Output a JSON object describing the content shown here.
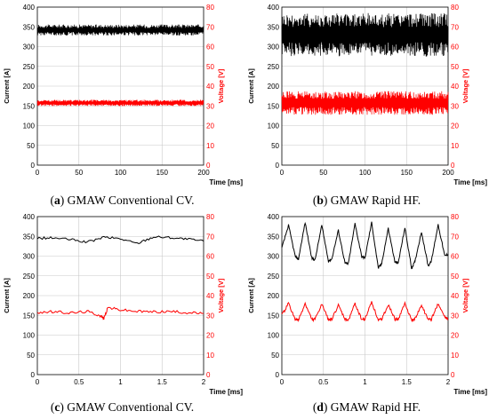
{
  "colors": {
    "current": "#000000",
    "voltage": "#ff0000",
    "grid": "#c8c8c8"
  },
  "chart_data": [
    {
      "type": "line",
      "caption_letter": "a",
      "caption_text": "GMAW Conventional CV.",
      "xlabel": "Time [ms]",
      "ylabel": "Current [A]",
      "y2label": "Voltage [V]",
      "xlim": [
        0,
        200
      ],
      "xticks": [
        "0",
        "50",
        "100",
        "150",
        "200"
      ],
      "ylim": [
        0,
        400
      ],
      "yticks": [
        "0",
        "50",
        "100",
        "150",
        "200",
        "250",
        "300",
        "350",
        "400"
      ],
      "y2lim": [
        0,
        80
      ],
      "y2ticks": [
        "0",
        "10",
        "20",
        "30",
        "40",
        "50",
        "60",
        "70",
        "80"
      ],
      "series": [
        {
          "axis": "left",
          "kind": "band",
          "center": 342,
          "amp": 14
        },
        {
          "axis": "right",
          "kind": "band",
          "center": 31.5,
          "amp": 1.6
        }
      ]
    },
    {
      "type": "line",
      "caption_letter": "b",
      "caption_text": "GMAW Rapid HF.",
      "xlabel": "Time [ms]",
      "ylabel": "Current [A]",
      "y2label": "Voltage [V]",
      "xlim": [
        0,
        200
      ],
      "xticks": [
        "0",
        "50",
        "100",
        "150",
        "200"
      ],
      "ylim": [
        0,
        400
      ],
      "yticks": [
        "0",
        "50",
        "100",
        "150",
        "200",
        "250",
        "300",
        "350",
        "400"
      ],
      "y2lim": [
        0,
        80
      ],
      "y2ticks": [
        "0",
        "10",
        "20",
        "30",
        "40",
        "50",
        "60",
        "70",
        "80"
      ],
      "series": [
        {
          "axis": "left",
          "kind": "band",
          "center": 330,
          "amp": 55
        },
        {
          "axis": "right",
          "kind": "band",
          "center": 31.5,
          "amp": 6
        }
      ]
    },
    {
      "type": "line",
      "caption_letter": "c",
      "caption_text": "GMAW Conventional CV.",
      "xlabel": "Time [ms]",
      "ylabel": "Current [A]",
      "y2label": "Voltage [V]",
      "xlim": [
        0,
        2
      ],
      "xticks": [
        "0",
        "0.5",
        "1",
        "1.5",
        "2"
      ],
      "ylim": [
        0,
        400
      ],
      "yticks": [
        "0",
        "50",
        "100",
        "150",
        "200",
        "250",
        "300",
        "350",
        "400"
      ],
      "y2lim": [
        0,
        80
      ],
      "y2ticks": [
        "0",
        "10",
        "20",
        "30",
        "40",
        "50",
        "60",
        "70",
        "80"
      ],
      "series": [
        {
          "axis": "left",
          "kind": "points",
          "x": [
            0,
            0.2,
            0.4,
            0.6,
            0.8,
            1.0,
            1.2,
            1.4,
            1.6,
            1.8,
            2.0
          ],
          "y": [
            345,
            346,
            342,
            335,
            348,
            344,
            332,
            349,
            347,
            343,
            338
          ]
        },
        {
          "axis": "right",
          "kind": "points",
          "x": [
            0,
            0.2,
            0.4,
            0.6,
            0.75,
            0.8,
            0.85,
            1.0,
            1.2,
            1.4,
            1.6,
            1.8,
            2.0
          ],
          "y": [
            31.5,
            31.8,
            31.2,
            32,
            30,
            28.5,
            34,
            32.8,
            32,
            31.8,
            32,
            31.4,
            31
          ]
        }
      ]
    },
    {
      "type": "line",
      "caption_letter": "d",
      "caption_text": "GMAW Rapid HF.",
      "xlabel": "Time [ms]",
      "ylabel": "Current [A]",
      "y2label": "Voltage [V]",
      "xlim": [
        0,
        2
      ],
      "xticks": [
        "0",
        "0.5",
        "1",
        "1.5",
        "2"
      ],
      "ylim": [
        0,
        400
      ],
      "yticks": [
        "0",
        "50",
        "100",
        "150",
        "200",
        "250",
        "300",
        "350",
        "400"
      ],
      "y2lim": [
        0,
        80
      ],
      "y2ticks": [
        "0",
        "10",
        "20",
        "30",
        "40",
        "50",
        "60",
        "70",
        "80"
      ],
      "series": [
        {
          "axis": "left",
          "kind": "points",
          "x": [
            0,
            0.08,
            0.16,
            0.2,
            0.28,
            0.36,
            0.4,
            0.48,
            0.56,
            0.6,
            0.68,
            0.76,
            0.8,
            0.88,
            0.96,
            1.0,
            1.08,
            1.16,
            1.2,
            1.28,
            1.36,
            1.4,
            1.48,
            1.56,
            1.6,
            1.68,
            1.76,
            1.8,
            1.88,
            1.96,
            2.0
          ],
          "y": [
            320,
            378,
            300,
            292,
            385,
            295,
            290,
            378,
            288,
            292,
            365,
            282,
            280,
            382,
            300,
            295,
            385,
            270,
            280,
            370,
            285,
            282,
            372,
            270,
            285,
            362,
            275,
            288,
            380,
            300,
            305
          ]
        },
        {
          "axis": "right",
          "kind": "points",
          "x": [
            0,
            0.08,
            0.16,
            0.2,
            0.28,
            0.36,
            0.4,
            0.48,
            0.56,
            0.6,
            0.68,
            0.76,
            0.8,
            0.88,
            0.96,
            1.0,
            1.08,
            1.16,
            1.2,
            1.28,
            1.36,
            1.4,
            1.48,
            1.56,
            1.6,
            1.68,
            1.76,
            1.8,
            1.88,
            1.96,
            2.0
          ],
          "y": [
            30,
            36,
            28,
            27.5,
            36,
            28,
            28,
            35.5,
            28,
            28,
            35,
            28,
            27.5,
            36,
            28,
            28,
            37,
            27.5,
            28,
            35.5,
            28,
            28,
            36,
            27.5,
            28,
            35,
            28,
            28,
            36,
            29,
            28
          ]
        }
      ]
    }
  ]
}
